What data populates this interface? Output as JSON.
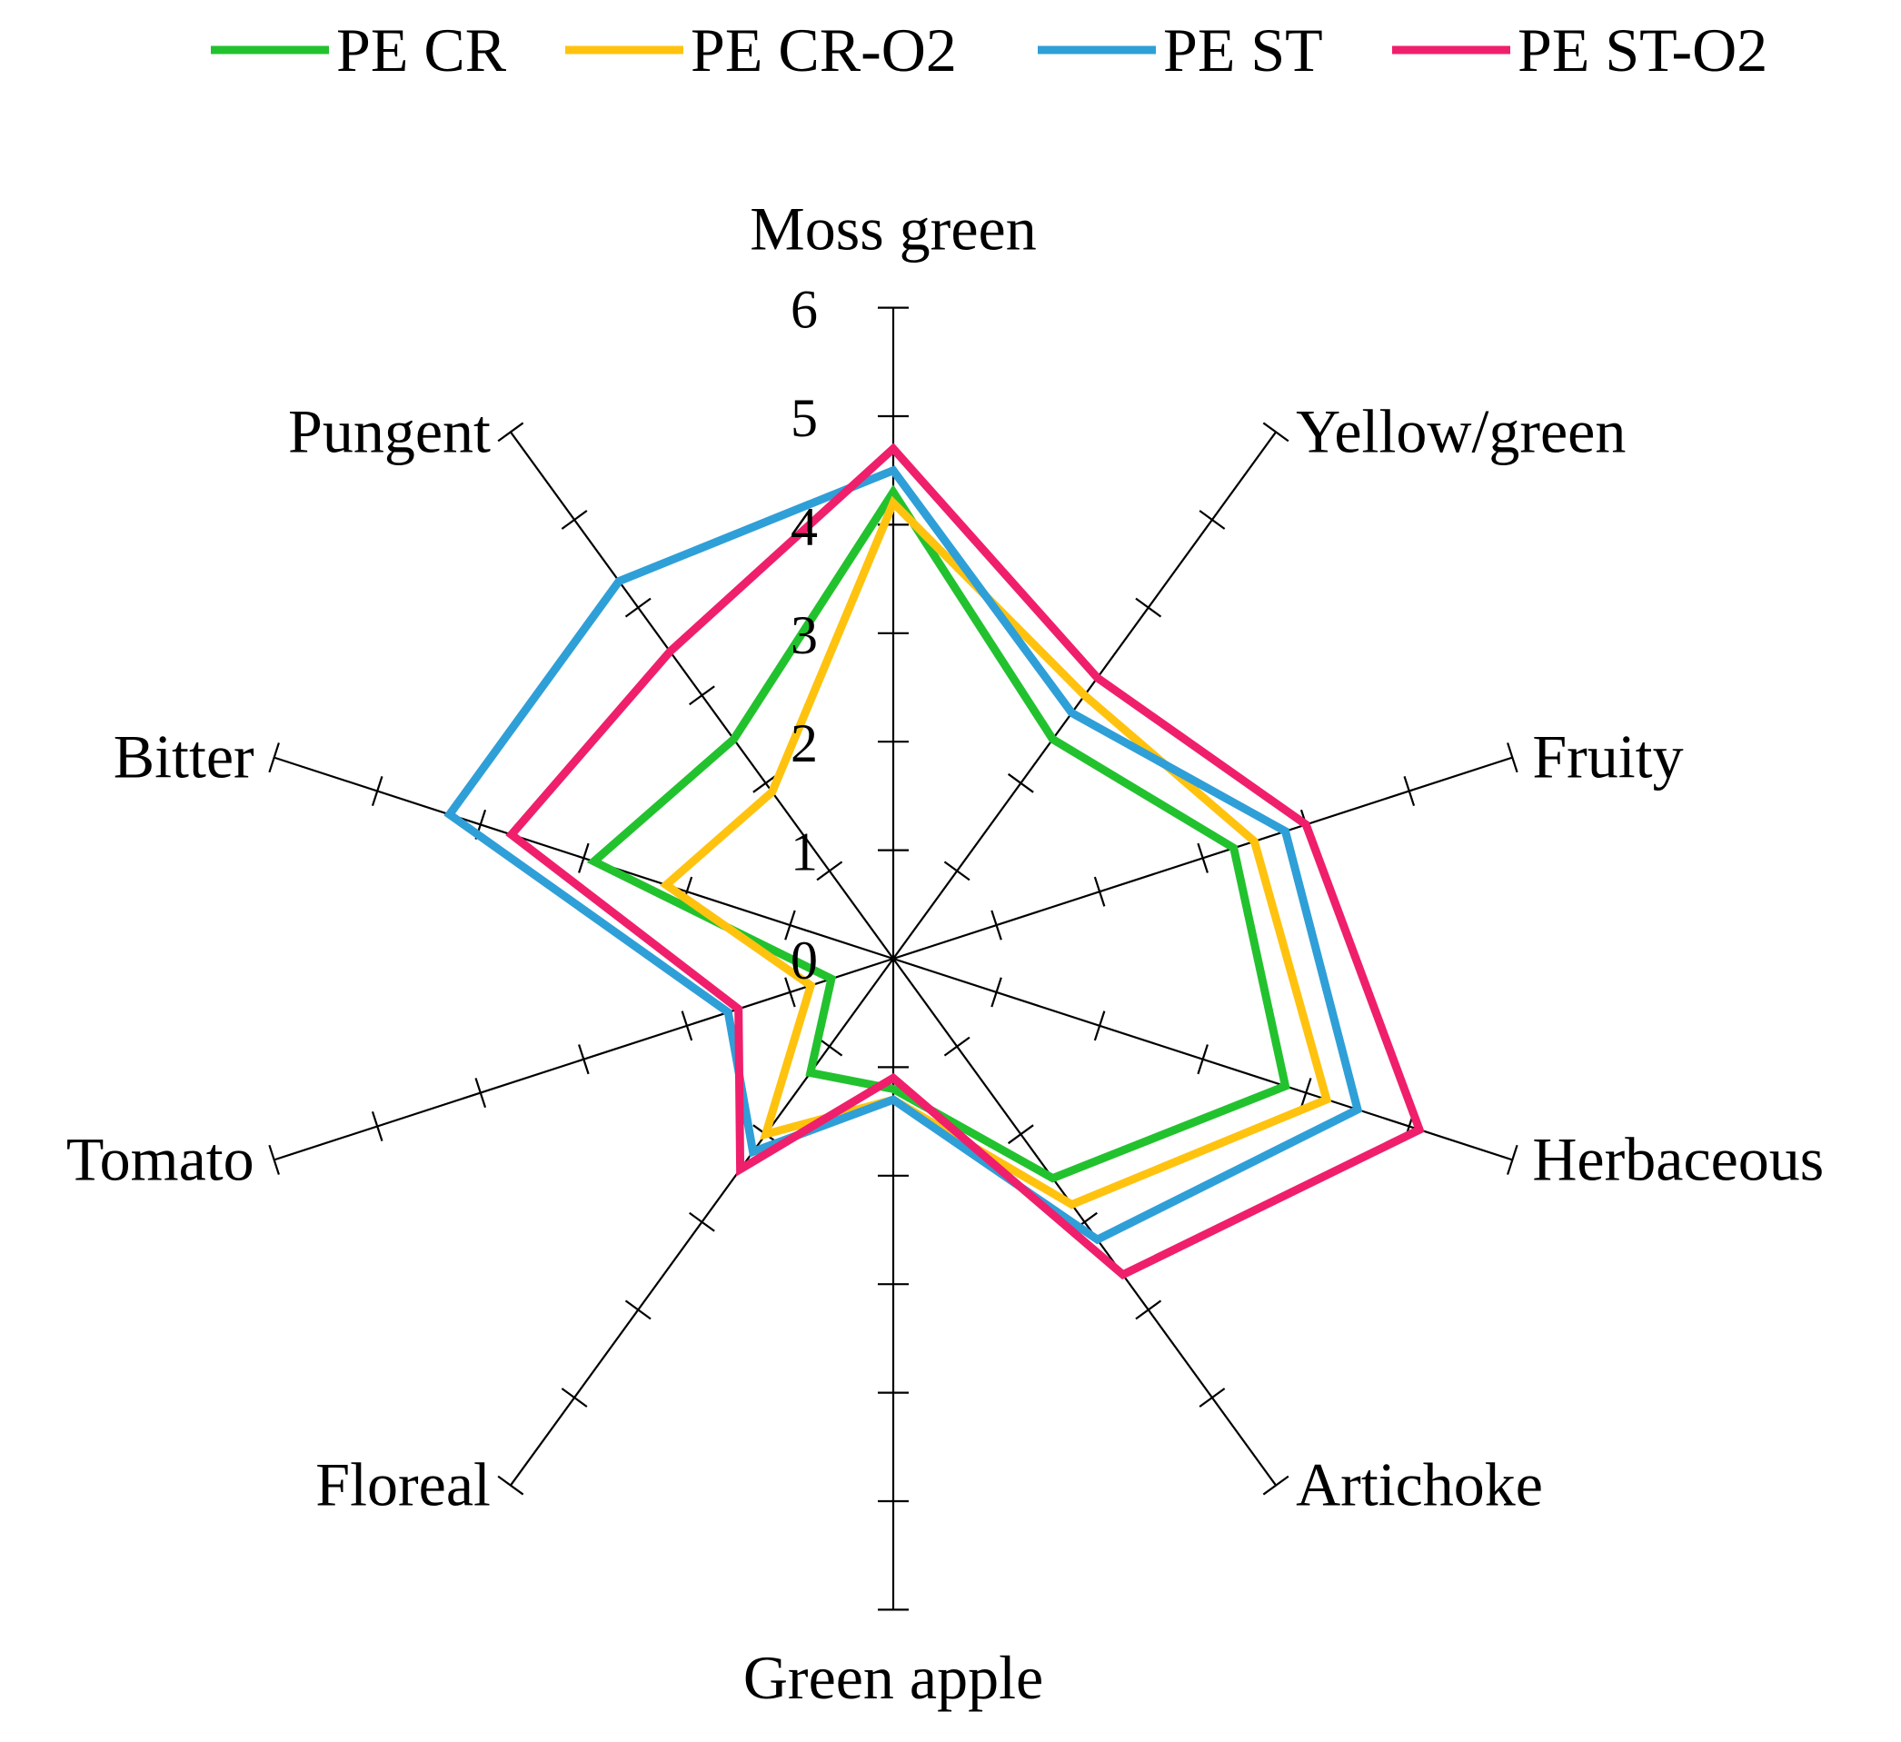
{
  "chart_data": {
    "type": "radar",
    "axes": [
      "Moss green",
      "Yellow/green",
      "Fruity",
      "Herbaceous",
      "Artichoke",
      "Green apple",
      "Floreal",
      "Tomato",
      "Bitter",
      "Pungent"
    ],
    "r_ticks": [
      "0",
      "1",
      "2",
      "3",
      "4",
      "5",
      "6"
    ],
    "r_range": [
      0,
      6
    ],
    "legend_position": "top",
    "series": [
      {
        "name": "PE CR",
        "color": "#22c22e",
        "values": [
          4.3,
          2.5,
          3.3,
          3.8,
          2.5,
          1.2,
          1.3,
          0.6,
          2.9,
          2.5
        ]
      },
      {
        "name": "PE CR-O2",
        "color": "#ffc30f",
        "values": [
          4.2,
          3.0,
          3.5,
          4.2,
          2.8,
          1.3,
          2.0,
          0.8,
          2.2,
          1.9
        ]
      },
      {
        "name": "PE ST",
        "color": "#2f9fd8",
        "values": [
          4.5,
          2.8,
          3.8,
          4.5,
          3.2,
          1.3,
          2.2,
          1.6,
          4.3,
          4.3
        ]
      },
      {
        "name": "PE ST-O2",
        "color": "#ef1f6c",
        "values": [
          4.7,
          3.2,
          4.0,
          5.1,
          3.6,
          1.1,
          2.4,
          1.5,
          3.7,
          3.5
        ]
      }
    ]
  }
}
